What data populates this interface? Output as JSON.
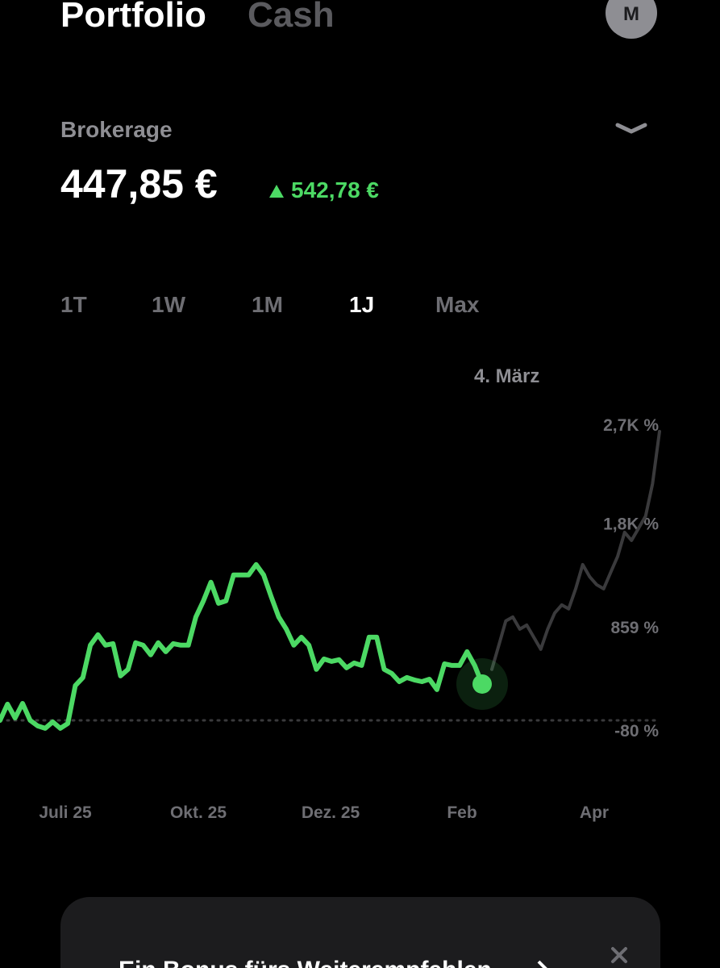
{
  "header": {
    "tabs": [
      "Portfolio",
      "Cash"
    ],
    "avatar": "M"
  },
  "account": {
    "name": "Brokerage",
    "balance": "447,85 €",
    "change": "542,78 €"
  },
  "ranges": [
    "1T",
    "1W",
    "1M",
    "1J",
    "Max"
  ],
  "selected_range": "1J",
  "chart_data": {
    "type": "line",
    "annotation": "4. März",
    "x_labels": [
      "Juli 25",
      "Okt. 25",
      "Dez. 25",
      "Feb",
      "Apr"
    ],
    "series": [
      {
        "color": "#4cd964",
        "values": [
          15,
          162,
          37,
          169,
          15,
          -36,
          -58,
          1,
          -58,
          -14,
          331,
          404,
          698,
          793,
          698,
          712,
          419,
          478,
          720,
          698,
          610,
          720,
          639,
          712,
          698,
          698,
          954,
          1101,
          1270,
          1079,
          1101,
          1336,
          1336,
          1336,
          1431,
          1336,
          1138,
          954,
          844,
          698,
          771,
          698,
          478,
          573,
          551,
          566,
          492,
          536,
          514,
          771,
          771,
          478,
          441,
          367,
          404,
          382,
          367,
          389,
          294,
          529,
          514,
          514,
          639,
          514,
          345
        ]
      },
      {
        "color": "#3a3a3c",
        "values": [
          478,
          698,
          918,
          954,
          844,
          881,
          771,
          661,
          844,
          991,
          1064,
          1028,
          1211,
          1431,
          1321,
          1248,
          1211,
          1358,
          1504,
          1724,
          1651,
          1761,
          1871,
          2165,
          2641
        ]
      }
    ],
    "ylim": [
      -330,
      2970
    ],
    "yticks": [
      {
        "value": 2700,
        "label": "2,7K %"
      },
      {
        "value": 1800,
        "label": "1,8K %"
      },
      {
        "value": 859,
        "label": "859 %"
      },
      {
        "value": -80,
        "label": "-80 %"
      }
    ]
  },
  "banner": {
    "text": "Ein Bonus fürs Weiterempfehlen"
  }
}
